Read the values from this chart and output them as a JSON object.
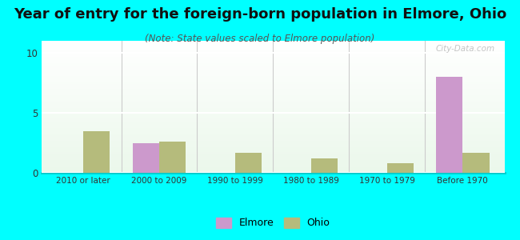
{
  "title": "Year of entry for the foreign-born population in Elmore, Ohio",
  "subtitle": "(Note: State values scaled to Elmore population)",
  "categories": [
    "2010 or later",
    "2000 to 2009",
    "1990 to 1999",
    "1980 to 1989",
    "1970 to 1979",
    "Before 1970"
  ],
  "elmore_values": [
    0,
    2.5,
    0,
    0,
    0,
    8.0
  ],
  "ohio_values": [
    3.5,
    2.6,
    1.7,
    1.2,
    0.8,
    1.7
  ],
  "elmore_color": "#cc99cc",
  "ohio_color": "#b5bb7c",
  "background_color": "#00ffff",
  "ylim": [
    0,
    11
  ],
  "yticks": [
    0,
    5,
    10
  ],
  "bar_width": 0.35,
  "title_fontsize": 13,
  "subtitle_fontsize": 8.5
}
